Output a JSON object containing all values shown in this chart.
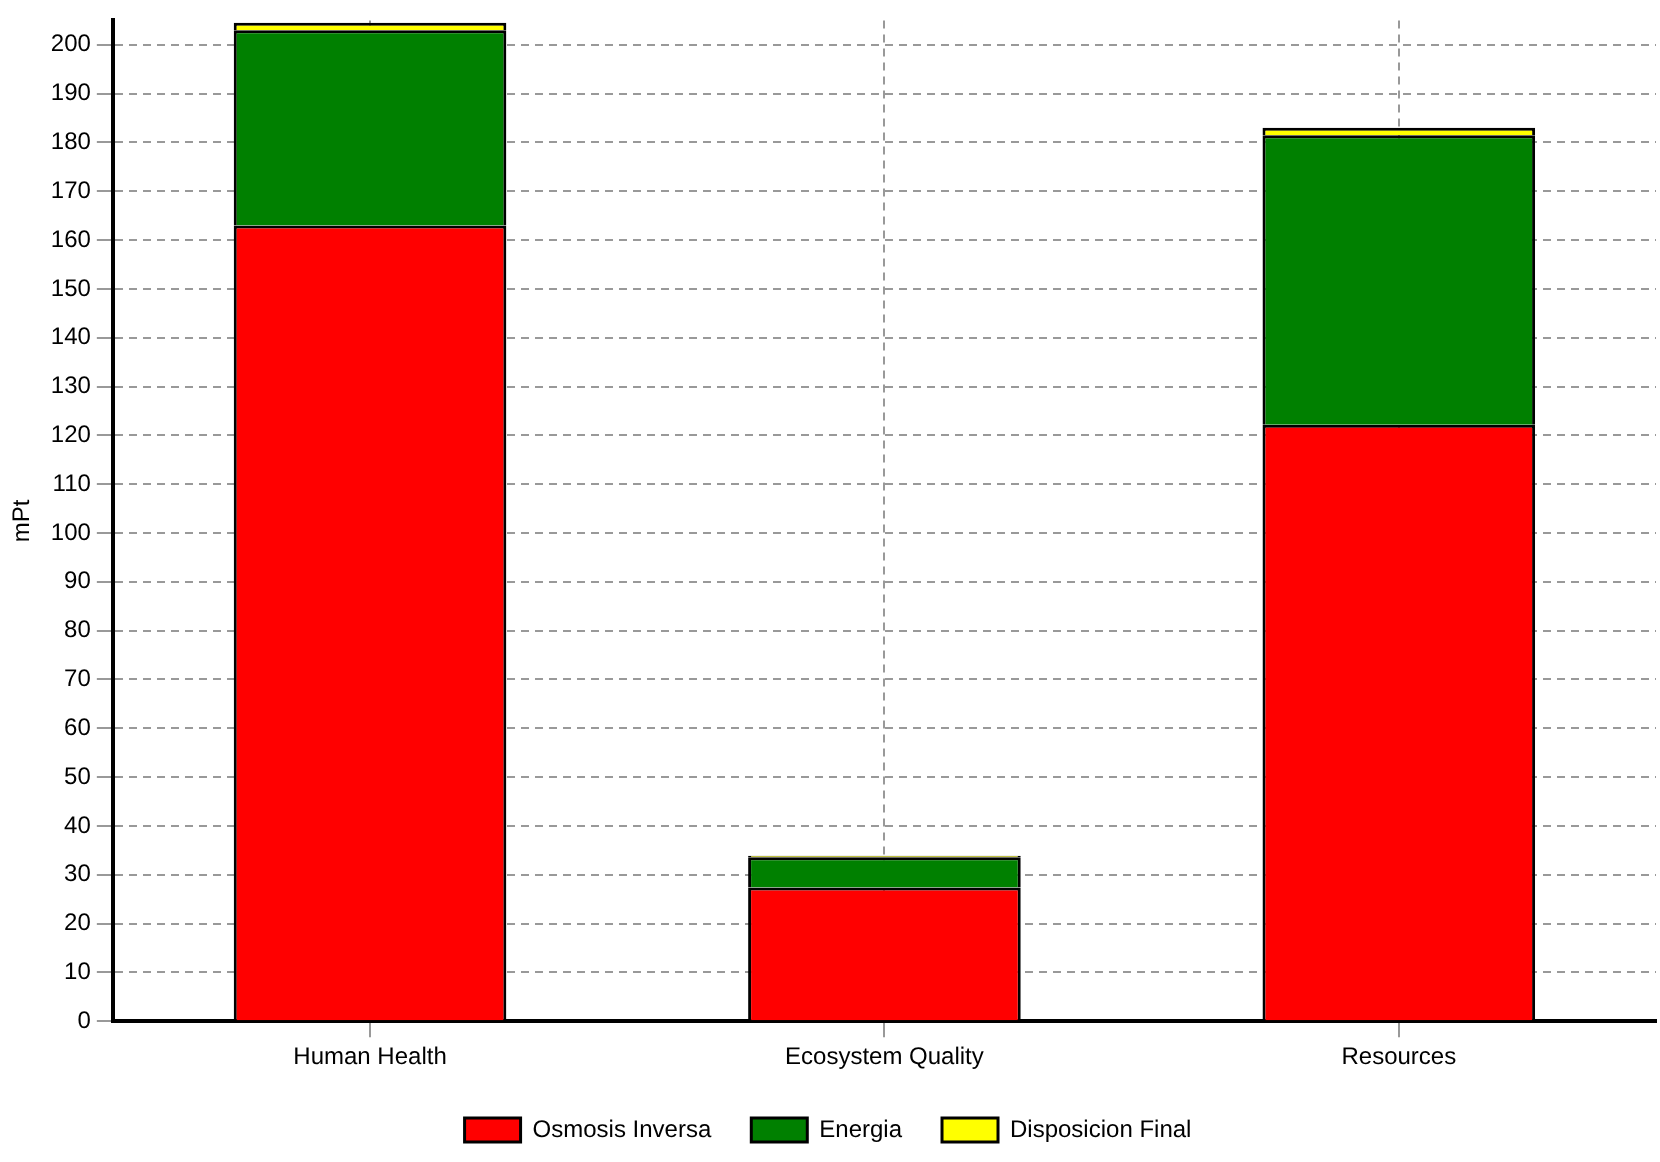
{
  "chart_data": {
    "type": "bar",
    "stacked": true,
    "ylabel": "mPt",
    "categories": [
      "Human Health",
      "Ecosystem Quality",
      "Resources"
    ],
    "series": [
      {
        "name": "Osmosis Inversa",
        "color": "#ff0000",
        "values": [
          163,
          27.4,
          122.2
        ]
      },
      {
        "name": "Energia",
        "color": "#008000",
        "values": [
          40,
          6.2,
          59.3
        ]
      },
      {
        "name": "Disposicion Final",
        "color": "#ffff00",
        "values": [
          1.5,
          0.3,
          1.5
        ]
      }
    ],
    "ylim": [
      0,
      205
    ],
    "yticks": [
      0,
      10,
      20,
      30,
      40,
      50,
      60,
      70,
      80,
      90,
      100,
      110,
      120,
      130,
      140,
      150,
      160,
      170,
      180,
      190,
      200
    ],
    "grid": true,
    "legend": "bottom"
  }
}
